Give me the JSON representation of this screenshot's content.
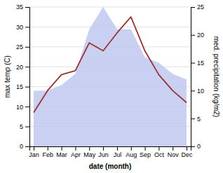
{
  "chart_data": {
    "type": "line",
    "xlabel": "date (month)",
    "ylabel": "max temp (C)",
    "y2label": "med. precipitation (kg/m2)",
    "categories": [
      "Jan",
      "Feb",
      "Mar",
      "Apr",
      "May",
      "Jun",
      "Jul",
      "Aug",
      "Sep",
      "Oct",
      "Nov",
      "Dec"
    ],
    "series": [
      {
        "type": "area",
        "axis": "y2",
        "color": "#bfc8f0",
        "values": [
          10.0,
          10.0,
          11.0,
          13.0,
          21.0,
          25.0,
          21.0,
          21.0,
          16.0,
          15.0,
          13.0,
          12.0
        ]
      },
      {
        "type": "line",
        "color": "#993333",
        "values": [
          8.5,
          14.0,
          18.0,
          19.0,
          26.0,
          24.0,
          28.5,
          32.5,
          24.0,
          18.0,
          14.0,
          11.0
        ]
      }
    ],
    "ylim": [
      0,
      35
    ],
    "yticks": [
      0,
      5,
      10,
      15,
      20,
      25,
      30,
      35
    ],
    "y2lim": [
      0,
      25
    ],
    "y2ticks": [
      0,
      5,
      10,
      15,
      20,
      25
    ],
    "grid": true
  }
}
